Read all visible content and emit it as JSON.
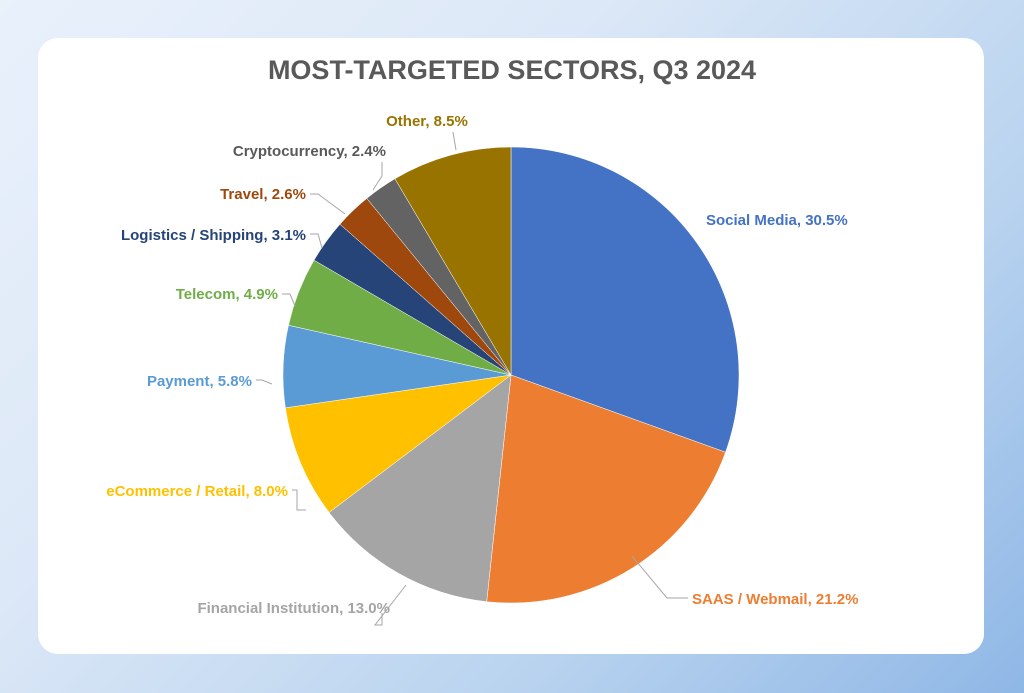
{
  "chart_data": {
    "type": "pie",
    "title": "MOST-TARGETED SECTORS, Q3 2024",
    "start_angle_deg": 0,
    "direction": "clockwise",
    "slices": [
      {
        "label": "Social Media, 30.5%",
        "name": "Social Media",
        "value": 30.5,
        "color": "#4472C4"
      },
      {
        "label": "SAAS / Webmail, 21.2%",
        "name": "SAAS / Webmail",
        "value": 21.2,
        "color": "#ED7D31"
      },
      {
        "label": "Financial Institution, 13.0%",
        "name": "Financial Institution",
        "value": 13.0,
        "color": "#A5A5A5"
      },
      {
        "label": "eCommerce / Retail, 8.0%",
        "name": "eCommerce / Retail",
        "value": 8.0,
        "color": "#FFC000"
      },
      {
        "label": "Payment, 5.8%",
        "name": "Payment",
        "value": 5.8,
        "color": "#5B9BD5"
      },
      {
        "label": "Telecom, 4.9%",
        "name": "Telecom",
        "value": 4.9,
        "color": "#70AD47"
      },
      {
        "label": "Logistics / Shipping, 3.1%",
        "name": "Logistics / Shipping",
        "value": 3.1,
        "color": "#264478"
      },
      {
        "label": "Travel, 2.6%",
        "name": "Travel",
        "value": 2.6,
        "color": "#9E480E"
      },
      {
        "label": "Cryptocurrency, 2.4%",
        "name": "Cryptocurrency",
        "value": 2.4,
        "color": "#636363"
      },
      {
        "label": "Other, 8.5%",
        "name": "Other",
        "value": 8.5,
        "color": "#997300"
      }
    ]
  }
}
